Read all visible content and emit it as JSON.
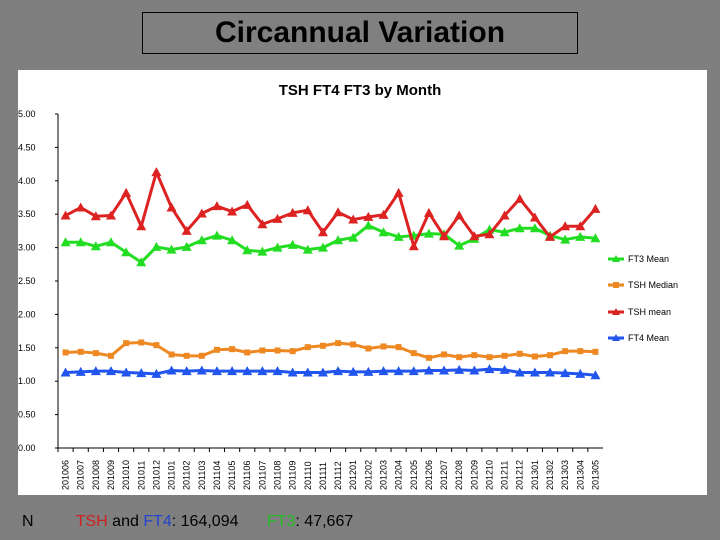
{
  "slide_title": "Circannual Variation",
  "footer": {
    "n_label": "N",
    "tsh": "TSH",
    "and": " and ",
    "ft4": "FT4",
    "count1": ": 164,094",
    "ft3": "FT3",
    "count2": ": 47,667"
  },
  "chart_data": {
    "type": "line",
    "title": "TSH FT4 FT3 by Month",
    "xlabel": "",
    "ylabel": "",
    "ylim": [
      0,
      5
    ],
    "yticks": [
      "0.00",
      "0.50",
      "1.00",
      "1.50",
      "2.00",
      "2.50",
      "3.00",
      "3.50",
      "4.00",
      "4.50",
      "5.00"
    ],
    "categories": [
      "201006",
      "201007",
      "201008",
      "201009",
      "201010",
      "201011",
      "201012",
      "201101",
      "201102",
      "201103",
      "201104",
      "201105",
      "201106",
      "201107",
      "201108",
      "201109",
      "201110",
      "201111",
      "201112",
      "201201",
      "201202",
      "201203",
      "201204",
      "201205",
      "201206",
      "201207",
      "201208",
      "201209",
      "201210",
      "201211",
      "201212",
      "201301",
      "201302",
      "201303",
      "201304",
      "201305"
    ],
    "series": [
      {
        "name": "FT3 Mean",
        "color": "#22dd22",
        "marker": "triangle",
        "values": [
          3.08,
          3.08,
          3.02,
          3.08,
          2.93,
          2.78,
          3.01,
          2.97,
          3.01,
          3.11,
          3.18,
          3.11,
          2.96,
          2.94,
          3.0,
          3.04,
          2.97,
          3.0,
          3.11,
          3.15,
          3.33,
          3.23,
          3.16,
          3.18,
          3.21,
          3.2,
          3.03,
          3.13,
          3.27,
          3.23,
          3.29,
          3.29,
          3.18,
          3.12,
          3.16,
          3.14
        ]
      },
      {
        "name": "TSH Median",
        "color": "#ee8822",
        "marker": "square",
        "values": [
          1.43,
          1.44,
          1.42,
          1.38,
          1.57,
          1.58,
          1.54,
          1.4,
          1.38,
          1.38,
          1.47,
          1.48,
          1.43,
          1.46,
          1.46,
          1.45,
          1.51,
          1.53,
          1.57,
          1.55,
          1.49,
          1.52,
          1.51,
          1.42,
          1.35,
          1.4,
          1.36,
          1.39,
          1.36,
          1.38,
          1.41,
          1.37,
          1.39,
          1.45,
          1.45,
          1.44
        ]
      },
      {
        "name": "TSH mean",
        "color": "#dd2222",
        "marker": "triangle",
        "values": [
          3.48,
          3.6,
          3.47,
          3.48,
          3.82,
          3.32,
          4.13,
          3.6,
          3.25,
          3.51,
          3.62,
          3.54,
          3.64,
          3.35,
          3.43,
          3.52,
          3.56,
          3.23,
          3.53,
          3.42,
          3.46,
          3.49,
          3.82,
          3.02,
          3.52,
          3.17,
          3.48,
          3.17,
          3.2,
          3.48,
          3.73,
          3.45,
          3.16,
          3.32,
          3.32,
          3.58
        ]
      },
      {
        "name": "FT4 Mean",
        "color": "#2255ee",
        "marker": "triangle",
        "values": [
          1.13,
          1.14,
          1.15,
          1.15,
          1.13,
          1.12,
          1.11,
          1.16,
          1.15,
          1.16,
          1.15,
          1.15,
          1.15,
          1.15,
          1.15,
          1.13,
          1.13,
          1.13,
          1.15,
          1.14,
          1.14,
          1.15,
          1.15,
          1.15,
          1.16,
          1.16,
          1.17,
          1.16,
          1.18,
          1.17,
          1.13,
          1.13,
          1.13,
          1.12,
          1.11,
          1.09
        ]
      }
    ]
  }
}
